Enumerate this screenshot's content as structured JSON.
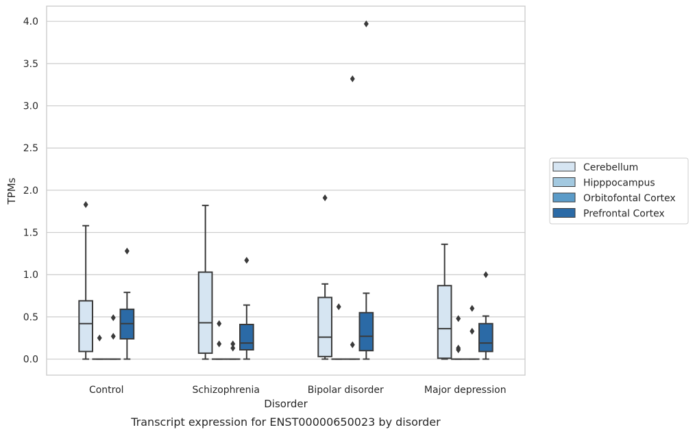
{
  "chart_data": {
    "type": "box",
    "title": "Transcript expression for ENST00000650023 by disorder",
    "xlabel": "Disorder",
    "ylabel": "TPMs",
    "ylim": [
      -0.19,
      4.18
    ],
    "yticks": [
      "0.0",
      "0.5",
      "1.0",
      "1.5",
      "2.0",
      "2.5",
      "3.0",
      "3.5",
      "4.0"
    ],
    "categories": [
      "Control",
      "Schizophrenia",
      "Bipolar disorder",
      "Major depression"
    ],
    "grid": true,
    "legend_position": "right",
    "series": [
      {
        "name": "Cerebellum",
        "color": "#d6e5f2",
        "boxes": [
          {
            "whislo": 0.0,
            "q1": 0.09,
            "med": 0.42,
            "q3": 0.69,
            "whishi": 1.58,
            "fliers": [
              1.83
            ]
          },
          {
            "whislo": 0.0,
            "q1": 0.07,
            "med": 0.43,
            "q3": 1.03,
            "whishi": 1.82,
            "fliers": []
          },
          {
            "whislo": 0.0,
            "q1": 0.03,
            "med": 0.26,
            "q3": 0.73,
            "whishi": 0.89,
            "fliers": [
              1.91
            ]
          },
          {
            "whislo": 0.0,
            "q1": 0.01,
            "med": 0.36,
            "q3": 0.87,
            "whishi": 1.36,
            "fliers": []
          }
        ]
      },
      {
        "name": "Hipppocampus",
        "color": "#a3c9e0",
        "boxes": [
          {
            "whislo": 0.0,
            "q1": 0.0,
            "med": 0.0,
            "q3": 0.0,
            "whishi": 0.0,
            "fliers": [
              0.25
            ]
          },
          {
            "whislo": 0.0,
            "q1": 0.0,
            "med": 0.0,
            "q3": 0.0,
            "whishi": 0.0,
            "fliers": [
              0.42,
              0.18
            ]
          },
          {
            "whislo": 0.0,
            "q1": 0.0,
            "med": 0.0,
            "q3": 0.0,
            "whishi": 0.0,
            "fliers": [
              0.62
            ]
          },
          {
            "whislo": 0.0,
            "q1": 0.0,
            "med": 0.0,
            "q3": 0.0,
            "whishi": 0.0,
            "fliers": [
              0.48,
              0.13,
              0.11
            ]
          }
        ]
      },
      {
        "name": "Orbitofontal Cortex",
        "color": "#5b9bc8",
        "boxes": [
          {
            "whislo": 0.0,
            "q1": 0.0,
            "med": 0.0,
            "q3": 0.0,
            "whishi": 0.0,
            "fliers": [
              0.49,
              0.27
            ]
          },
          {
            "whislo": 0.0,
            "q1": 0.0,
            "med": 0.0,
            "q3": 0.0,
            "whishi": 0.0,
            "fliers": [
              0.18,
              0.13
            ]
          },
          {
            "whislo": 0.0,
            "q1": 0.0,
            "med": 0.0,
            "q3": 0.0,
            "whishi": 0.0,
            "fliers": [
              3.32,
              0.17
            ]
          },
          {
            "whislo": 0.0,
            "q1": 0.0,
            "med": 0.0,
            "q3": 0.0,
            "whishi": 0.0,
            "fliers": [
              0.6,
              0.33
            ]
          }
        ]
      },
      {
        "name": "Prefrontal Cortex",
        "color": "#2b6aa6",
        "boxes": [
          {
            "whislo": 0.0,
            "q1": 0.24,
            "med": 0.42,
            "q3": 0.59,
            "whishi": 0.79,
            "fliers": [
              1.28
            ]
          },
          {
            "whislo": 0.0,
            "q1": 0.11,
            "med": 0.19,
            "q3": 0.41,
            "whishi": 0.64,
            "fliers": [
              1.17
            ]
          },
          {
            "whislo": 0.0,
            "q1": 0.1,
            "med": 0.27,
            "q3": 0.55,
            "whishi": 0.78,
            "fliers": [
              3.97
            ]
          },
          {
            "whislo": 0.0,
            "q1": 0.09,
            "med": 0.19,
            "q3": 0.42,
            "whishi": 0.51,
            "fliers": [
              1.0
            ]
          }
        ]
      }
    ]
  }
}
